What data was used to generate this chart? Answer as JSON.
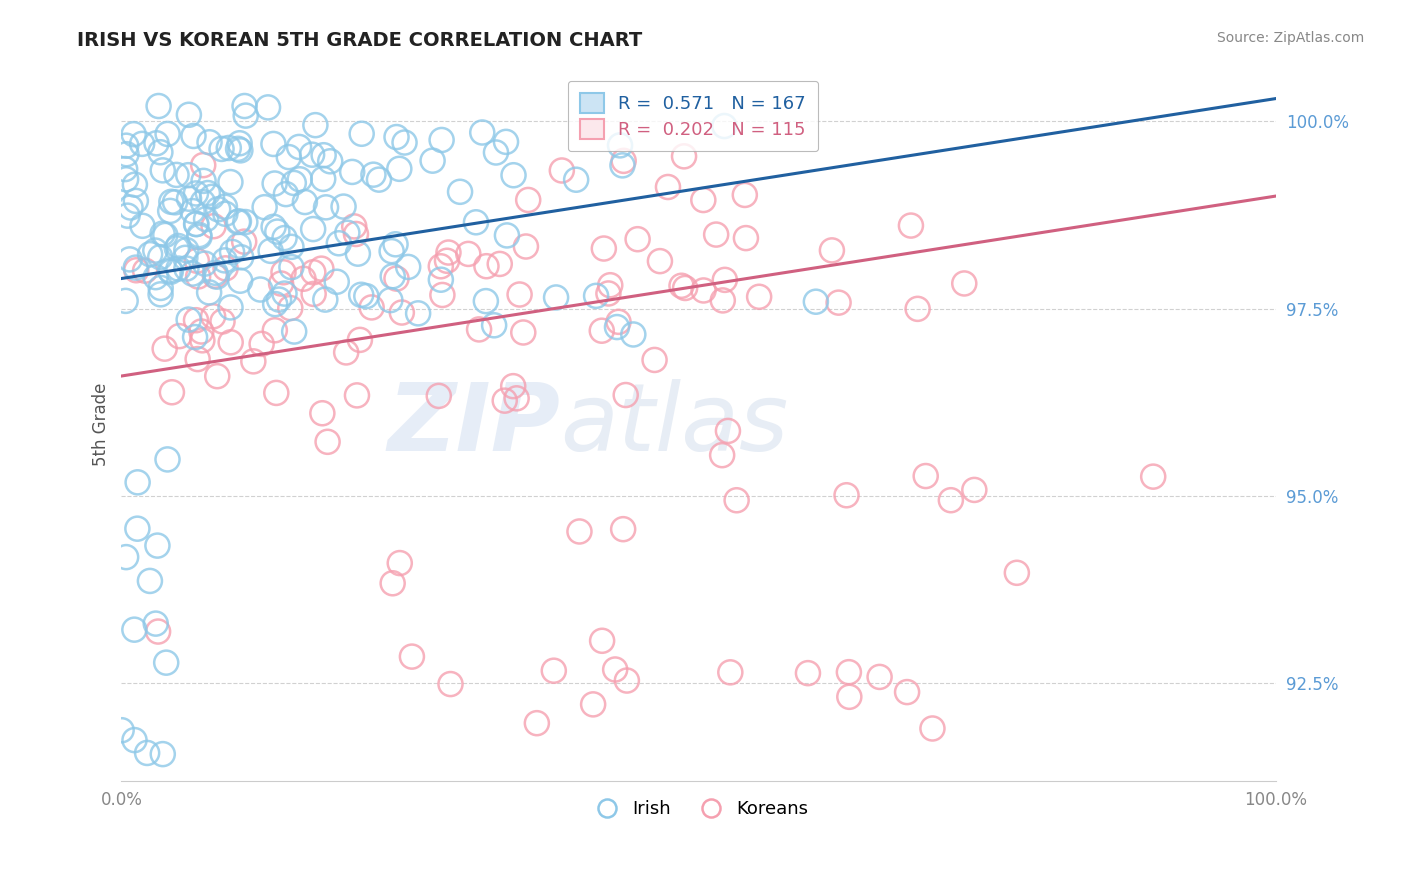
{
  "title": "IRISH VS KOREAN 5TH GRADE CORRELATION CHART",
  "source": "Source: ZipAtlas.com",
  "ylabel": "5th Grade",
  "ytick_labels": [
    "92.5%",
    "95.0%",
    "97.5%",
    "100.0%"
  ],
  "ytick_values": [
    0.925,
    0.95,
    0.975,
    1.0
  ],
  "xlim": [
    0.0,
    1.0
  ],
  "ylim": [
    0.912,
    1.007
  ],
  "irish_color": "#8ec8e8",
  "korean_color": "#f5a0b0",
  "irish_line_color": "#2060a0",
  "korean_line_color": "#d06080",
  "irish_R": 0.571,
  "irish_N": 167,
  "korean_R": 0.202,
  "korean_N": 115,
  "legend_irish": "Irish",
  "legend_korean": "Koreans",
  "watermark_zip": "ZIP",
  "watermark_atlas": "atlas",
  "background_color": "#ffffff",
  "grid_color": "#cccccc",
  "ytick_color": "#5b9bd5",
  "xtick_color": "#888888"
}
